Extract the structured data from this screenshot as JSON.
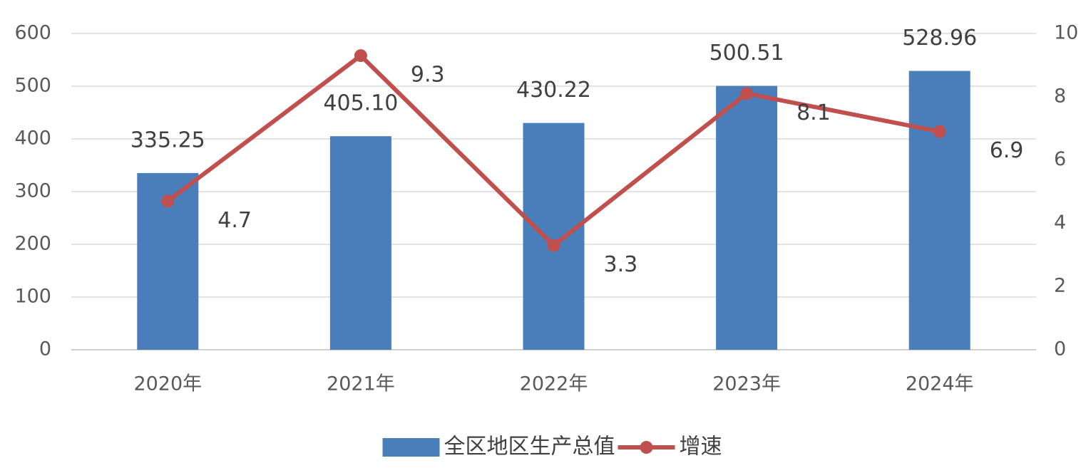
{
  "chart_data": {
    "type": "bar",
    "categories": [
      "2020年",
      "2021年",
      "2022年",
      "2023年",
      "2024年"
    ],
    "series": [
      {
        "name": "全区地区生产总值",
        "type": "bar",
        "color": "#4a7ebb",
        "values": [
          335.25,
          405.1,
          430.22,
          500.51,
          528.96
        ],
        "value_labels": [
          "335.25",
          "405.10",
          "430.22",
          "500.51",
          "528.96"
        ]
      },
      {
        "name": "增速",
        "type": "line",
        "axis": "y2",
        "color": "#c0504d",
        "values": [
          4.7,
          9.3,
          3.3,
          8.1,
          6.9
        ]
      }
    ],
    "ylim": [
      0,
      600
    ],
    "yticks": [
      0,
      100,
      200,
      300,
      400,
      500,
      600
    ],
    "y2lim": [
      0,
      10
    ],
    "y2ticks": [
      0,
      2,
      4,
      6,
      8,
      10
    ],
    "grid": true,
    "legend": "bottom"
  }
}
